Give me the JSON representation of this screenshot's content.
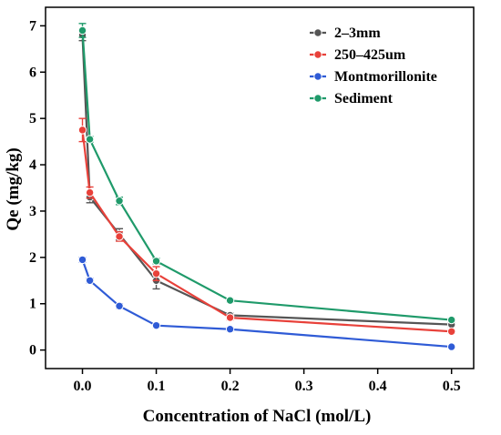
{
  "chart_data": {
    "type": "line",
    "title": "",
    "xlabel": "Concentration of NaCl (mol/L)",
    "ylabel": "Qe (mg/kg)",
    "xlim": [
      -0.05,
      0.53
    ],
    "ylim": [
      -0.4,
      7.4
    ],
    "x_ticks": [
      0.0,
      0.1,
      0.2,
      0.3,
      0.4,
      0.5
    ],
    "y_ticks": [
      0,
      1,
      2,
      3,
      4,
      5,
      6,
      7
    ],
    "x_tick_labels": [
      "0.0",
      "0.1",
      "0.2",
      "0.3",
      "0.4",
      "0.5"
    ],
    "y_tick_labels": [
      "0",
      "1",
      "2",
      "3",
      "4",
      "5",
      "6",
      "7"
    ],
    "grid": false,
    "legend_position": "top-right",
    "x": [
      0.0,
      0.01,
      0.05,
      0.1,
      0.2,
      0.5
    ],
    "series": [
      {
        "name": "2–3mm",
        "color": "#555555",
        "values": [
          6.8,
          3.3,
          2.5,
          1.5,
          0.75,
          0.55
        ],
        "errors": [
          0.12,
          0.12,
          0.12,
          0.18,
          0.05,
          0.04
        ]
      },
      {
        "name": "250–425um",
        "color": "#e8413a",
        "values": [
          4.75,
          3.4,
          2.45,
          1.65,
          0.7,
          0.4
        ],
        "errors": [
          0.25,
          0.12,
          0.1,
          0.15,
          0.05,
          0.04
        ]
      },
      {
        "name": "Montmorillonite",
        "color": "#2f5bd6",
        "values": [
          1.95,
          1.5,
          0.95,
          0.53,
          0.45,
          0.07
        ],
        "errors": [
          0.05,
          0.05,
          0.05,
          0.04,
          0.04,
          0.03
        ]
      },
      {
        "name": "Sediment",
        "color": "#1f9a6a",
        "values": [
          6.9,
          4.55,
          3.22,
          1.92,
          1.07,
          0.65
        ],
        "errors": [
          0.15,
          0.06,
          0.08,
          0.06,
          0.04,
          0.04
        ]
      }
    ]
  }
}
